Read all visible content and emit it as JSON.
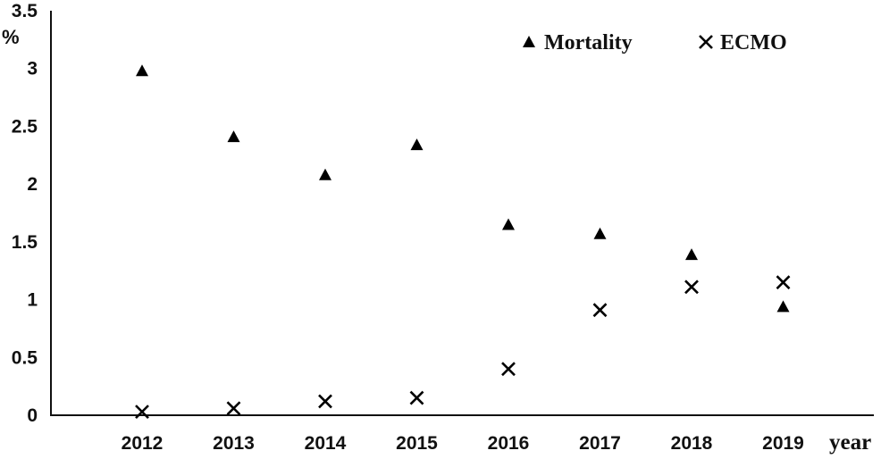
{
  "chart_data": {
    "type": "scatter",
    "categories": [
      "2012",
      "2013",
      "2014",
      "2015",
      "2016",
      "2017",
      "2018",
      "2019"
    ],
    "series": [
      {
        "name": "Mortality",
        "marker": "triangle",
        "color": "#000000",
        "values": [
          2.98,
          2.41,
          2.08,
          2.34,
          1.65,
          1.57,
          1.39,
          0.94
        ]
      },
      {
        "name": "ECMO",
        "marker": "cross",
        "color": "#000000",
        "values": [
          0.03,
          0.06,
          0.12,
          0.15,
          0.4,
          0.91,
          1.11,
          1.15
        ]
      }
    ],
    "y_ticks": [
      "0",
      "0.5",
      "1",
      "1.5",
      "2",
      "2.5",
      "3",
      "3.5"
    ],
    "ylim": [
      0,
      3.5
    ],
    "ylabel": "%",
    "xlabel": "year",
    "grid": false,
    "legend_position": "top-right"
  }
}
